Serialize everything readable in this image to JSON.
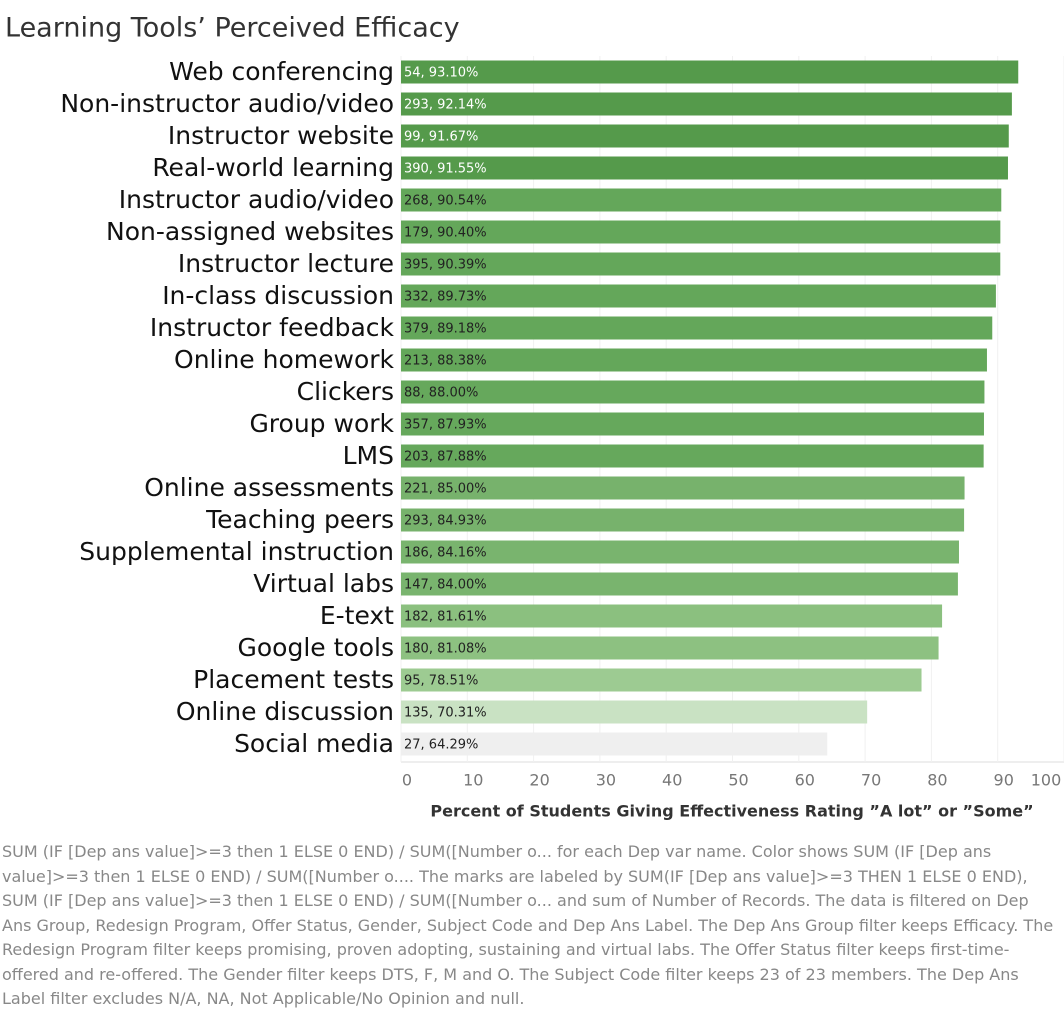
{
  "chart_data": {
    "type": "hbar",
    "title": "Learning Tools’ Perceived Efficacy",
    "categories": [
      "Web conferencing",
      "Non-instructor audio/video",
      "Instructor website",
      "Real-world learning",
      "Instructor audio/video",
      "Non-assigned websites",
      "Instructor lecture",
      "In-class discussion",
      "Instructor feedback",
      "Online homework",
      "Clickers",
      "Group work",
      "LMS",
      "Online assessments",
      "Teaching peers",
      "Supplemental instruction",
      "Virtual labs",
      "E-text",
      "Google tools",
      "Placement tests",
      "Online discussion",
      "Social media"
    ],
    "values": [
      93.1,
      92.14,
      91.67,
      91.55,
      90.54,
      90.4,
      90.39,
      89.73,
      89.18,
      88.38,
      88.0,
      87.93,
      87.88,
      85.0,
      84.93,
      84.16,
      84.0,
      81.61,
      81.08,
      78.51,
      70.31,
      64.29
    ],
    "value_labels": [
      "54, 93.10%",
      "293, 92.14%",
      "99, 91.67%",
      "390, 91.55%",
      "268, 90.54%",
      "179, 90.40%",
      "395, 90.39%",
      "332, 89.73%",
      "379, 89.18%",
      "213, 88.38%",
      "88, 88.00%",
      "357, 87.93%",
      "203, 87.88%",
      "221, 85.00%",
      "293, 84.93%",
      "186, 84.16%",
      "147, 84.00%",
      "182, 81.61%",
      "180, 81.08%",
      "95, 78.51%",
      "135, 70.31%",
      "27, 64.29%"
    ],
    "colors": [
      "#559a4b",
      "#559a4b",
      "#559a4b",
      "#559a4b",
      "#64a75a",
      "#64a75a",
      "#64a75a",
      "#64a75a",
      "#64a75a",
      "#64a75a",
      "#66a85c",
      "#66a85c",
      "#66a85c",
      "#77b26c",
      "#77b26c",
      "#79b46e",
      "#79b46e",
      "#8bc07f",
      "#8dc181",
      "#9dcb92",
      "#c9e2c3",
      "#efefef"
    ],
    "xlim": [
      0,
      100
    ],
    "xticks": [
      0,
      10,
      20,
      30,
      40,
      50,
      60,
      70,
      80,
      90,
      100
    ],
    "xlabel": "Percent of Students Giving Effectiveness Rating ”A lot” or ”Some”",
    "grid": true,
    "caption": "SUM (IF [Dep ans value]>=3 then 1 ELSE 0 END) / SUM([Number o... for each Dep var name.  Color shows SUM (IF [Dep ans value]>=3 then 1 ELSE 0 END) / SUM([Number o....  The marks are labeled by SUM(IF [Dep ans value]>=3 THEN 1 ELSE 0 END), SUM (IF [Dep ans value]>=3 then 1 ELSE 0 END) / SUM([Number o... and sum of Number of Records. The data is filtered on Dep Ans Group, Redesign Program, Offer Status, Gender, Subject Code and Dep Ans Label. The Dep Ans Group filter keeps Efficacy. The Redesign Program filter keeps promising, proven adopting, sustaining and virtual labs. The Offer Status filter keeps first-time-offered and re-offered. The Gender filter keeps DTS, F, M and O. The Subject Code filter keeps 23 of 23 members. The Dep Ans Label filter excludes N/A, NA, Not Applicable/No Opinion and null."
  }
}
